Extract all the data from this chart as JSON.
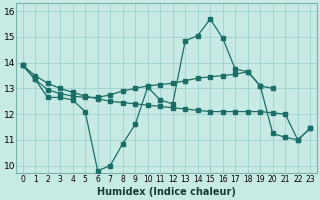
{
  "xlabel": "Humidex (Indice chaleur)",
  "background_color": "#c8eae5",
  "grid_color": "#a0d0cc",
  "line_color": "#1a6e65",
  "xlim": [
    -0.5,
    23.5
  ],
  "ylim": [
    9.7,
    16.3
  ],
  "yticks": [
    10,
    11,
    12,
    13,
    14,
    15,
    16
  ],
  "xticks": [
    0,
    1,
    2,
    3,
    4,
    5,
    6,
    7,
    8,
    9,
    10,
    11,
    12,
    13,
    14,
    15,
    16,
    17,
    18,
    19,
    20,
    21,
    22,
    23
  ],
  "series1_x": [
    0,
    1,
    2,
    3,
    4,
    5,
    6,
    7,
    8,
    9,
    10,
    11,
    12,
    13,
    14,
    15,
    16,
    17,
    18,
    19,
    20,
    21,
    22,
    23
  ],
  "series1_y": [
    13.9,
    13.35,
    12.65,
    12.65,
    12.55,
    12.1,
    9.8,
    10.0,
    10.85,
    11.6,
    13.05,
    12.55,
    12.4,
    14.85,
    15.05,
    15.7,
    14.95,
    13.75,
    13.65,
    13.1,
    11.25,
    11.1,
    11.0,
    11.45
  ],
  "series2_x": [
    0,
    1,
    2,
    3,
    4,
    5,
    6,
    7,
    8,
    9,
    10,
    11,
    12,
    13,
    14,
    15,
    16,
    17,
    18,
    19,
    20
  ],
  "series2_y": [
    13.9,
    13.35,
    12.95,
    12.8,
    12.7,
    12.65,
    12.65,
    12.75,
    12.9,
    13.0,
    13.1,
    13.15,
    13.2,
    13.3,
    13.4,
    13.45,
    13.5,
    13.55,
    13.65,
    13.1,
    13.0
  ],
  "series3_x": [
    0,
    1,
    2,
    3,
    4,
    5,
    6,
    7,
    8,
    9,
    10,
    11,
    12,
    13,
    14,
    15,
    16,
    17,
    18,
    19,
    20,
    21,
    22,
    23
  ],
  "series3_y": [
    13.9,
    13.5,
    13.2,
    13.0,
    12.85,
    12.7,
    12.6,
    12.5,
    12.45,
    12.4,
    12.35,
    12.3,
    12.25,
    12.2,
    12.15,
    12.1,
    12.1,
    12.1,
    12.1,
    12.1,
    12.05,
    12.0,
    11.0,
    11.45
  ]
}
